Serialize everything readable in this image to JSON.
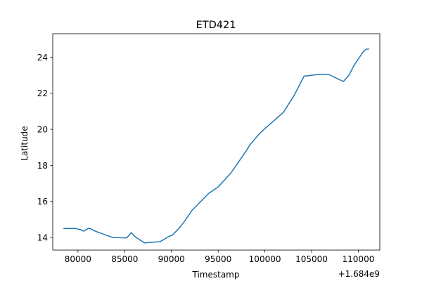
{
  "chart_data": {
    "type": "line",
    "title": "ETD421",
    "xlabel": "Timestamp",
    "ylabel": "Latitude",
    "x_offset_label": "+1.684e9",
    "xlim": [
      77300,
      112300
    ],
    "ylim": [
      13.3,
      25.3
    ],
    "x_ticks": [
      80000,
      85000,
      90000,
      95000,
      100000,
      105000,
      110000
    ],
    "y_ticks": [
      14,
      16,
      18,
      20,
      22,
      24
    ],
    "grid": false,
    "line_color": "#1f77b4",
    "series": [
      {
        "x": [
          78500,
          79800,
          80000,
          80200,
          80600,
          81100,
          81300,
          81700,
          83700,
          85200,
          85700,
          86100,
          87100,
          88800,
          89700,
          90100,
          90800,
          91400,
          92200,
          94000,
          95000,
          96400,
          97600,
          98500,
          99500,
          100800,
          102000,
          103100,
          104200,
          105900,
          106800,
          108400,
          109000,
          109500,
          109800,
          110200,
          110600,
          110900,
          111100
        ],
        "y": [
          14.5,
          14.5,
          14.45,
          14.45,
          14.35,
          14.5,
          14.5,
          14.38,
          14.0,
          13.97,
          14.27,
          14.05,
          13.7,
          13.77,
          14.05,
          14.13,
          14.5,
          14.9,
          15.5,
          16.45,
          16.8,
          17.6,
          18.5,
          19.2,
          19.8,
          20.4,
          20.95,
          21.85,
          22.95,
          23.05,
          23.05,
          22.65,
          23.0,
          23.5,
          23.75,
          24.05,
          24.35,
          24.45,
          24.45
        ]
      }
    ]
  }
}
